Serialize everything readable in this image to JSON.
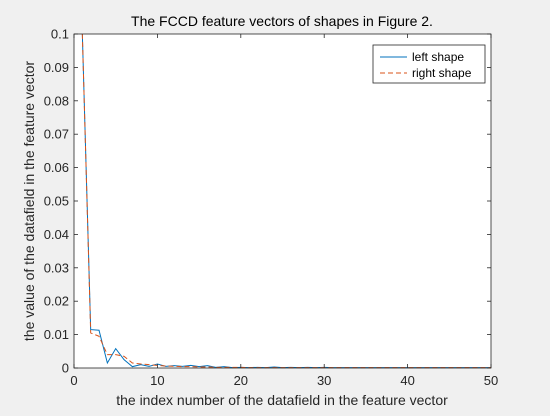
{
  "chart_data": {
    "type": "line",
    "title": "The FCCD feature vectors of shapes in Figure 2.",
    "xlabel": "the index number of the datafield in the feature vector",
    "ylabel": "the value of the datafield in the feature vector",
    "xlim": [
      0,
      50
    ],
    "ylim": [
      0,
      0.1
    ],
    "xticks": [
      "0",
      "10",
      "20",
      "30",
      "40",
      "50"
    ],
    "yticks": [
      "0",
      "0.01",
      "0.02",
      "0.03",
      "0.04",
      "0.05",
      "0.06",
      "0.07",
      "0.08",
      "0.09",
      "0.1"
    ],
    "grid": false,
    "legend_position": "top-right",
    "x": [
      1,
      2,
      3,
      4,
      5,
      6,
      7,
      8,
      9,
      10,
      11,
      12,
      13,
      14,
      15,
      16,
      17,
      18,
      19,
      20,
      21,
      22,
      23,
      24,
      25,
      26,
      27,
      28,
      29,
      30,
      31,
      32,
      33,
      34,
      35,
      36,
      37,
      38,
      39,
      40,
      41,
      42,
      43,
      44,
      45,
      46,
      47,
      48,
      49,
      50
    ],
    "series": [
      {
        "name": "left shape",
        "color": "#0072bd",
        "style": "solid",
        "values": [
          0.1,
          0.0115,
          0.0113,
          0.0015,
          0.0058,
          0.0025,
          0.0004,
          0.001,
          0.0005,
          0.0012,
          0.0005,
          0.0007,
          0.0005,
          0.0008,
          0.0004,
          0.0007,
          0.0002,
          0.0004,
          0.0001,
          0.0002,
          0.0001,
          0.0002,
          0.0001,
          0.0003,
          0.0001,
          0.0002,
          0.0001,
          0.0002,
          0.0001,
          0.0002,
          0.0001,
          0.0001,
          0.0001,
          0.0001,
          0.0001,
          0.0001,
          0.0001,
          0.0001,
          0.0001,
          0.0001,
          0.0001,
          0.0001,
          0.0001,
          0.0001,
          0.0001,
          0.0001,
          0.0001,
          0.0001,
          0.0001,
          0.0001
        ]
      },
      {
        "name": "right shape",
        "color": "#d95319",
        "style": "dashed",
        "values": [
          0.1,
          0.0105,
          0.0095,
          0.004,
          0.004,
          0.0035,
          0.0015,
          0.0012,
          0.001,
          0.0008,
          0.0006,
          0.0005,
          0.0004,
          0.0004,
          0.0003,
          0.0003,
          0.0002,
          0.0002,
          0.0002,
          0.0002,
          0.0001,
          0.0001,
          0.0001,
          0.0001,
          0.0001,
          0.0001,
          0.0001,
          0.0001,
          0.0001,
          0.0001,
          0.0001,
          0.0001,
          0.0001,
          0.0001,
          0.0001,
          0.0001,
          0.0001,
          0.0001,
          0.0001,
          0.0001,
          0.0001,
          0.0001,
          0.0001,
          0.0001,
          0.0001,
          0.0001,
          0.0001,
          0.0001,
          0.0001,
          0.0001
        ]
      }
    ]
  }
}
